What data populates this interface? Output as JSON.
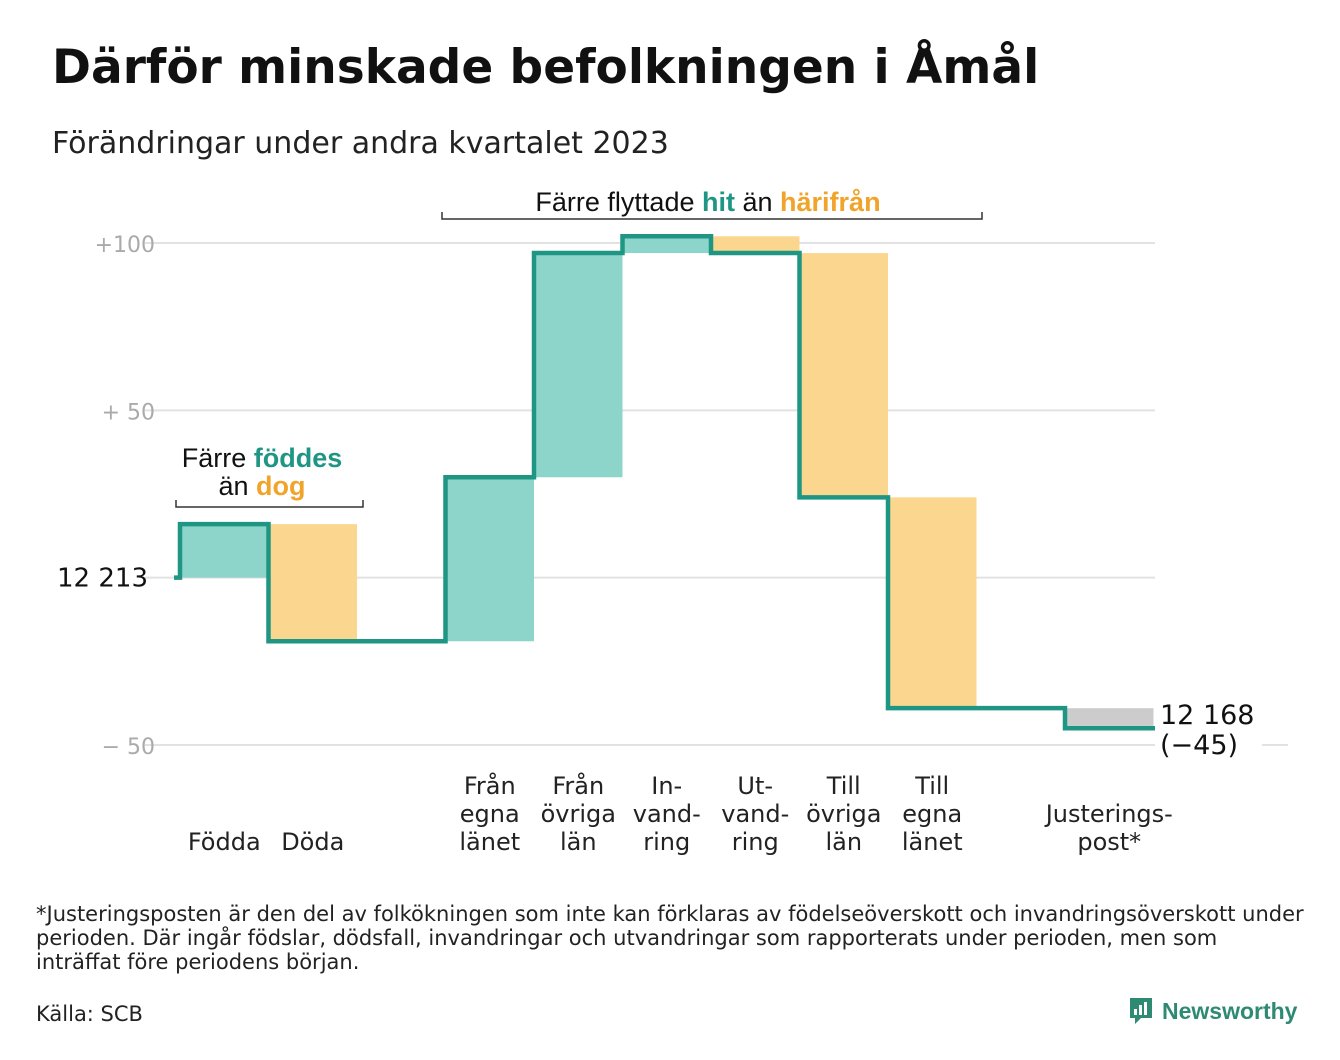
{
  "title": "Därför minskade befolkningen i Åmål",
  "subtitle": "Förändringar under andra kvartalet 2023",
  "footnote": "*Justeringsposten är den del av folkökningen som inte kan förklaras av födelseöverskott och invandringsöverskott under perioden. Där ingår födslar, dödsfall, invandringar och utvandringar som rapporterats under perioden, men som inträffat före periodens början.",
  "source": "Källa: SCB",
  "brand": "Newsworthy",
  "colors": {
    "increase": "#8dd5cb",
    "decrease": "#fbd68f",
    "adjustment": "#cccccc",
    "line": "#1f9684",
    "teal_text": "#1f9684",
    "orange_text": "#f0a42a",
    "grid": "#e2e2e2",
    "tick_text": "#aaaaaa"
  },
  "chart_data": {
    "type": "waterfall",
    "baseline_value": 12213,
    "y_ticks": [
      {
        "value": 100,
        "label": "+100"
      },
      {
        "value": 50,
        "label": "+ 50"
      },
      {
        "value": 0,
        "label": "12 213"
      },
      {
        "value": -50,
        "label": "− 50"
      }
    ],
    "ylim": [
      -50,
      100
    ],
    "categories": [
      {
        "label": [
          "Födda"
        ],
        "change": 16,
        "kind": "increase"
      },
      {
        "label": [
          "Döda"
        ],
        "change": -35,
        "kind": "decrease"
      },
      {
        "label": [
          ""
        ],
        "change": 0,
        "kind": "none"
      },
      {
        "label": [
          "Från",
          "egna",
          "länet"
        ],
        "change": 49,
        "kind": "increase"
      },
      {
        "label": [
          "Från",
          "övriga",
          "län"
        ],
        "change": 67,
        "kind": "increase"
      },
      {
        "label": [
          "In-",
          "vand-",
          "ring"
        ],
        "change": 5,
        "kind": "increase"
      },
      {
        "label": [
          "Ut-",
          "vand-",
          "ring"
        ],
        "change": -5,
        "kind": "decrease"
      },
      {
        "label": [
          "Till",
          "övriga",
          "län"
        ],
        "change": -73,
        "kind": "decrease"
      },
      {
        "label": [
          "Till",
          "egna",
          "länet"
        ],
        "change": -63,
        "kind": "decrease"
      },
      {
        "label": [
          ""
        ],
        "change": 0,
        "kind": "none"
      },
      {
        "label": [
          "Justerings-",
          "post*"
        ],
        "change": -6,
        "kind": "adjustment"
      }
    ],
    "end_value_label": "12 168",
    "end_change_label": "(−45)",
    "annotations": [
      {
        "id": "birth",
        "line1_plain": "Färre",
        "line1_highlight": "föddes",
        "line2_plain": "än",
        "line2_highlight": "dog"
      },
      {
        "id": "move",
        "plain1": "Färre flyttade",
        "highlight1": "hit",
        "plain2": "än",
        "highlight2": "härifrån"
      }
    ]
  }
}
